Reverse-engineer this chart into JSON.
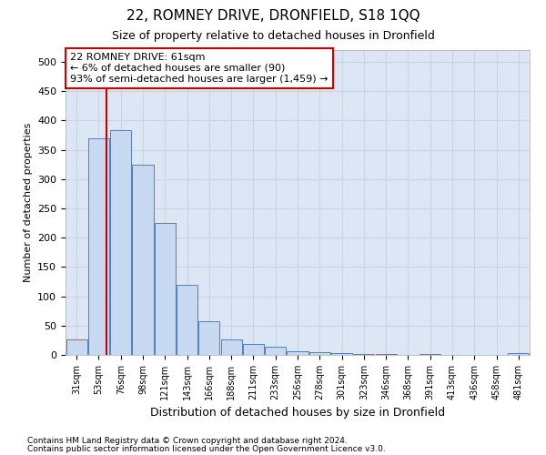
{
  "title1": "22, ROMNEY DRIVE, DRONFIELD, S18 1QQ",
  "title2": "Size of property relative to detached houses in Dronfield",
  "xlabel": "Distribution of detached houses by size in Dronfield",
  "ylabel": "Number of detached properties",
  "categories": [
    "31sqm",
    "53sqm",
    "76sqm",
    "98sqm",
    "121sqm",
    "143sqm",
    "166sqm",
    "188sqm",
    "211sqm",
    "233sqm",
    "256sqm",
    "278sqm",
    "301sqm",
    "323sqm",
    "346sqm",
    "368sqm",
    "391sqm",
    "413sqm",
    "436sqm",
    "458sqm",
    "481sqm"
  ],
  "values": [
    27,
    370,
    383,
    325,
    225,
    120,
    57,
    27,
    19,
    14,
    6,
    5,
    3,
    1,
    1,
    0,
    1,
    0,
    0,
    0,
    3
  ],
  "bar_color": "#c6d9f1",
  "bar_edge_color": "#4f81bd",
  "marker_label": "22 ROMNEY DRIVE: 61sqm",
  "annotation_line1": "← 6% of detached houses are smaller (90)",
  "annotation_line2": "93% of semi-detached houses are larger (1,459) →",
  "annotation_box_color": "#ffffff",
  "annotation_box_edge": "#cc0000",
  "marker_line_color": "#cc0000",
  "ylim": [
    0,
    520
  ],
  "yticks": [
    0,
    50,
    100,
    150,
    200,
    250,
    300,
    350,
    400,
    450,
    500
  ],
  "footnote1": "Contains HM Land Registry data © Crown copyright and database right 2024.",
  "footnote2": "Contains public sector information licensed under the Open Government Licence v3.0.",
  "grid_color": "#c8d4e8",
  "bg_color": "#dce6f5"
}
